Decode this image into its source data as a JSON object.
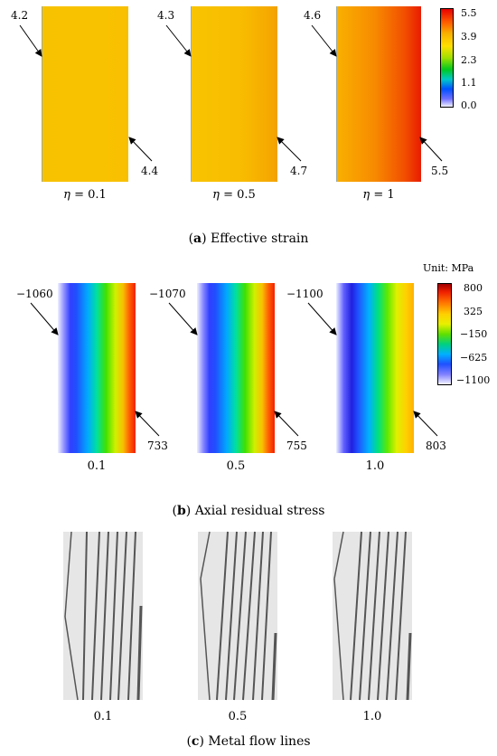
{
  "section_a": {
    "caption_letter": "a",
    "caption_text": "Effective strain",
    "panels": [
      {
        "eta_symbol": "η",
        "eta_value": "= 0.1",
        "left_value": "4.2",
        "right_value": "4.4",
        "color_left": "#f8c000",
        "color_right": "#f8c000"
      },
      {
        "eta_symbol": "η",
        "eta_value": "= 0.5",
        "left_value": "4.3",
        "right_value": "4.7",
        "color_left": "#f9c000",
        "color_right": "#f5a000"
      },
      {
        "eta_symbol": "η",
        "eta_value": "= 1",
        "left_value": "4.6",
        "right_value": "5.5",
        "color_left": "#f9a800",
        "color_right": "#ee2a00"
      }
    ],
    "colorbar": {
      "ticks": [
        "5.5",
        "3.9",
        "2.3",
        "1.1",
        "0.0"
      ]
    }
  },
  "section_b": {
    "caption_letter": "b",
    "caption_text": "Axial residual stress",
    "unit_label": "Unit: MPa",
    "panels": [
      {
        "label": "0.1",
        "left_value": "−1060",
        "right_value": "733"
      },
      {
        "label": "0.5",
        "left_value": "−1070",
        "right_value": "755"
      },
      {
        "label": "1.0",
        "left_value": "−1100",
        "right_value": "803"
      }
    ],
    "colorbar": {
      "ticks": [
        "800",
        "325",
        "−150",
        "−625",
        "−1100"
      ]
    }
  },
  "section_c": {
    "caption_letter": "c",
    "caption_text": "Metal flow lines",
    "panels": [
      {
        "label": "0.1"
      },
      {
        "label": "0.5"
      },
      {
        "label": "1.0"
      }
    ]
  }
}
